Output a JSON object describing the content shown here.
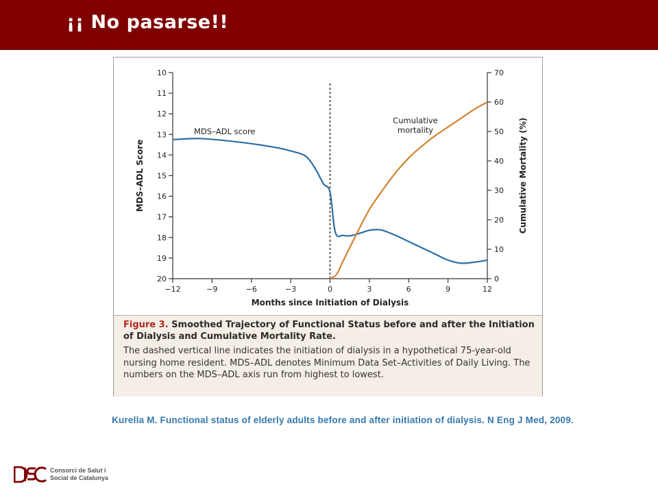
{
  "header": {
    "title": "¡¡ No pasarse!!",
    "color": "#800000"
  },
  "chart_data": {
    "type": "line",
    "xlabel": "Months since Initiation of Dialysis",
    "ylabel_left": "MDS–ADL Score",
    "ylabel_right": "Cumulative Mortality (%)",
    "x_ticks": [
      -12,
      -9,
      -6,
      -3,
      0,
      3,
      6,
      9,
      12
    ],
    "x_tick_labels": [
      "−12",
      "−9",
      "−6",
      "−3",
      "0",
      "3",
      "6",
      "9",
      "12"
    ],
    "xlim": [
      -12,
      12
    ],
    "y_left_ticks": [
      10,
      11,
      12,
      13,
      14,
      15,
      16,
      17,
      18,
      19,
      20
    ],
    "y_left_inverted": true,
    "ylim_left": [
      20,
      10
    ],
    "y_right_ticks": [
      0,
      10,
      20,
      30,
      40,
      50,
      60,
      70
    ],
    "ylim_right": [
      0,
      70
    ],
    "vline": {
      "x": 0,
      "style": "dashed"
    },
    "grid": false,
    "series": [
      {
        "name": "MDS–ADL score",
        "axis": "left",
        "color": "#2a6ea6",
        "x": [
          -12,
          -10,
          -8,
          -6,
          -4,
          -3,
          -2,
          -1.5,
          -1,
          -0.5,
          0,
          0.4,
          1,
          1.5,
          2,
          2.5,
          3,
          3.5,
          4,
          5,
          6,
          7,
          8,
          9,
          10,
          11,
          12
        ],
        "y": [
          13.25,
          13.2,
          13.3,
          13.45,
          13.65,
          13.8,
          14.0,
          14.3,
          14.8,
          15.4,
          15.8,
          17.75,
          17.9,
          17.92,
          17.85,
          17.75,
          17.65,
          17.62,
          17.65,
          17.9,
          18.2,
          18.5,
          18.8,
          19.1,
          19.25,
          19.2,
          19.1
        ]
      },
      {
        "name": "Cumulative mortality",
        "axis": "right",
        "color": "#d2822e",
        "x": [
          0,
          0.5,
          1,
          2,
          3,
          4,
          5,
          6,
          7,
          8,
          9,
          10,
          11,
          12
        ],
        "y": [
          0,
          1.5,
          6,
          15,
          23.5,
          30,
          36,
          41,
          45,
          48.5,
          51.5,
          54.5,
          57.5,
          60
        ]
      }
    ],
    "annotations": [
      {
        "text": "MDS–ADL score",
        "series": 0
      },
      {
        "text": "Cumulative",
        "series": 1
      },
      {
        "text": "mortality",
        "series": 1
      }
    ]
  },
  "caption": {
    "figure_label": "Figure 3.",
    "title_rest": "Smoothed Trajectory of Functional Status before and after the Initiation of Dialysis and Cumulative Mortality Rate.",
    "body": "The dashed vertical line indicates the initiation of dialysis in a hypothetical 75-year-old nursing home resident. MDS–ADL denotes Minimum Data Set–Activities of Daily Living. The numbers on the MDS–ADL axis run from highest to lowest."
  },
  "citation": "Kurella M. Functional status of elderly adults before and after initiation of dialysis. N Eng J Med, 2009.",
  "logo": {
    "line1": "Consorci de Salut i",
    "line2": "Social de Catalunya"
  }
}
